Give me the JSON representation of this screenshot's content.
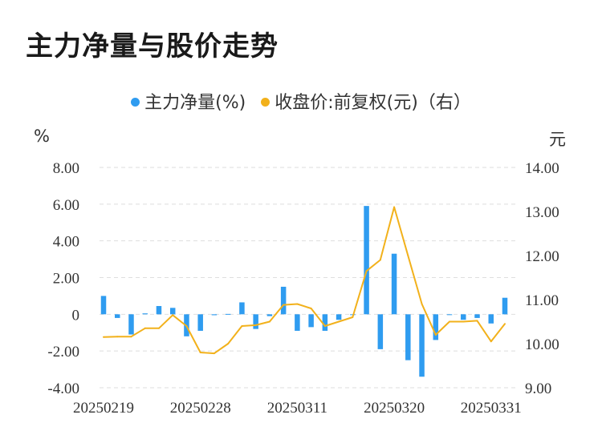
{
  "title": "主力净量与股价走势",
  "legend": [
    {
      "label": "主力净量(%)",
      "color": "#2f9cf0"
    },
    {
      "label": "收盘价:前复权(元)（右）",
      "color": "#f2b11b"
    }
  ],
  "chart_data": {
    "type": "bar+line",
    "left_unit": "%",
    "right_unit": "元",
    "y_left": {
      "min": -4,
      "max": 8,
      "ticks": [
        "8.00",
        "6.00",
        "4.00",
        "2.00",
        "0",
        "-2.00",
        "-4.00"
      ],
      "values": [
        8,
        6,
        4,
        2,
        0,
        -2,
        -4
      ]
    },
    "y_right": {
      "min": 9,
      "max": 14,
      "ticks": [
        "14.00",
        "13.00",
        "12.00",
        "11.00",
        "10.00",
        "9.00"
      ],
      "values": [
        14,
        13,
        12,
        11,
        10,
        9
      ]
    },
    "x_tick_labels": [
      {
        "label": "20250219",
        "index": 0
      },
      {
        "label": "20250228",
        "index": 7
      },
      {
        "label": "20250311",
        "index": 14
      },
      {
        "label": "20250320",
        "index": 21
      },
      {
        "label": "20250331",
        "index": 28
      }
    ],
    "grid": true,
    "series": [
      {
        "name": "主力净量(%)",
        "type": "bar",
        "axis": "left",
        "color": "#2f9cf0",
        "values": [
          1.0,
          -0.2,
          -1.1,
          0.05,
          0.45,
          0.35,
          -1.2,
          -0.9,
          -0.05,
          0.02,
          0.65,
          -0.8,
          -0.1,
          1.5,
          -0.9,
          -0.7,
          -0.9,
          -0.3,
          0.0,
          5.9,
          -1.9,
          3.3,
          -2.5,
          -3.4,
          -1.4,
          0.0,
          -0.3,
          -0.2,
          -0.5,
          0.9
        ]
      },
      {
        "name": "收盘价:前复权(元)（右）",
        "type": "line",
        "axis": "right",
        "color": "#f2b11b",
        "values": [
          10.15,
          10.16,
          10.16,
          10.35,
          10.35,
          10.65,
          10.4,
          9.8,
          9.78,
          10.0,
          10.4,
          10.42,
          10.5,
          10.88,
          10.9,
          10.8,
          10.4,
          10.5,
          10.6,
          11.65,
          11.9,
          13.1,
          12.0,
          10.9,
          10.2,
          10.5,
          10.5,
          10.52,
          10.05,
          10.45
        ]
      }
    ]
  }
}
